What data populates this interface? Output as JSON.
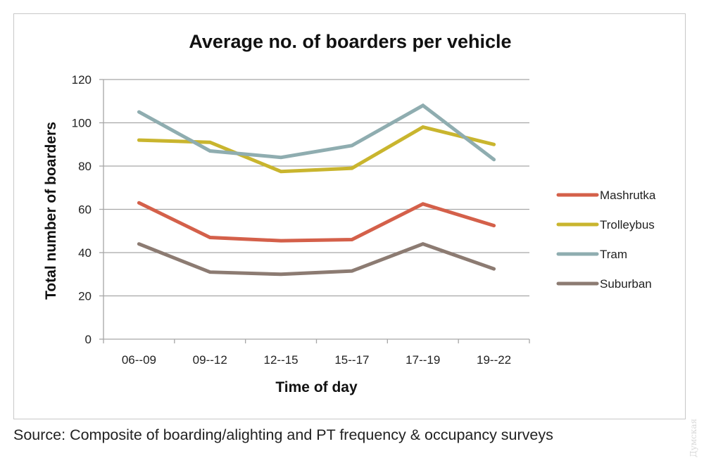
{
  "chart_data": {
    "type": "line",
    "title": "Average no. of boarders per vehicle",
    "xlabel": "Time of day",
    "ylabel": "Total number of boarders",
    "categories": [
      "06--09",
      "09--12",
      "12--15",
      "15--17",
      "17--19",
      "19--22"
    ],
    "ylim": [
      0,
      120
    ],
    "yticks": [
      0,
      20,
      40,
      60,
      80,
      100,
      120
    ],
    "ytick_labels": [
      "0",
      "20",
      "40",
      "60",
      "80",
      "100",
      "120"
    ],
    "grid": "horizontal",
    "legend_position": "right",
    "series": [
      {
        "name": "Mashrutka",
        "color": "#d4604a",
        "values": [
          63,
          47,
          45.5,
          46,
          62.5,
          52.5
        ]
      },
      {
        "name": "Trolleybus",
        "color": "#c9b52e",
        "values": [
          92,
          91,
          77.5,
          79,
          98,
          90
        ]
      },
      {
        "name": "Tram",
        "color": "#8fadb0",
        "values": [
          105,
          87,
          84,
          89.5,
          108,
          83
        ]
      },
      {
        "name": "Suburban",
        "color": "#8c7b72",
        "values": [
          44,
          31,
          30,
          31.5,
          44,
          32.5
        ]
      }
    ]
  },
  "source_note": "Source: Composite of boarding/alighting and PT frequency & occupancy surveys",
  "watermark": "Думская"
}
